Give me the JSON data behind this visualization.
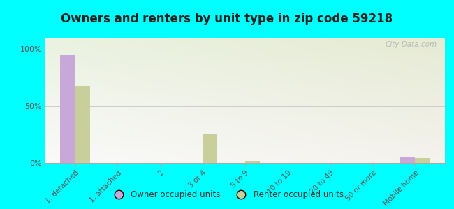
{
  "title": "Owners and renters by unit type in zip code 59218",
  "categories": [
    "1, detached",
    "1, attached",
    "2",
    "3 or 4",
    "5 to 9",
    "10 to 19",
    "20 to 49",
    "50 or more",
    "Mobile home"
  ],
  "owner_values": [
    95,
    0,
    0,
    0,
    0,
    0,
    0,
    0,
    5
  ],
  "renter_values": [
    68,
    0,
    0,
    25,
    2,
    0,
    0,
    0,
    4
  ],
  "owner_color": "#c8a8d8",
  "renter_color": "#c8cf9a",
  "background_color": "#00ffff",
  "bar_width": 0.35,
  "ylim": [
    0,
    110
  ],
  "yticks": [
    0,
    50,
    100
  ],
  "ytick_labels": [
    "0%",
    "50%",
    "100%"
  ],
  "legend_owner": "Owner occupied units",
  "legend_renter": "Renter occupied units",
  "watermark": "City-Data.com"
}
